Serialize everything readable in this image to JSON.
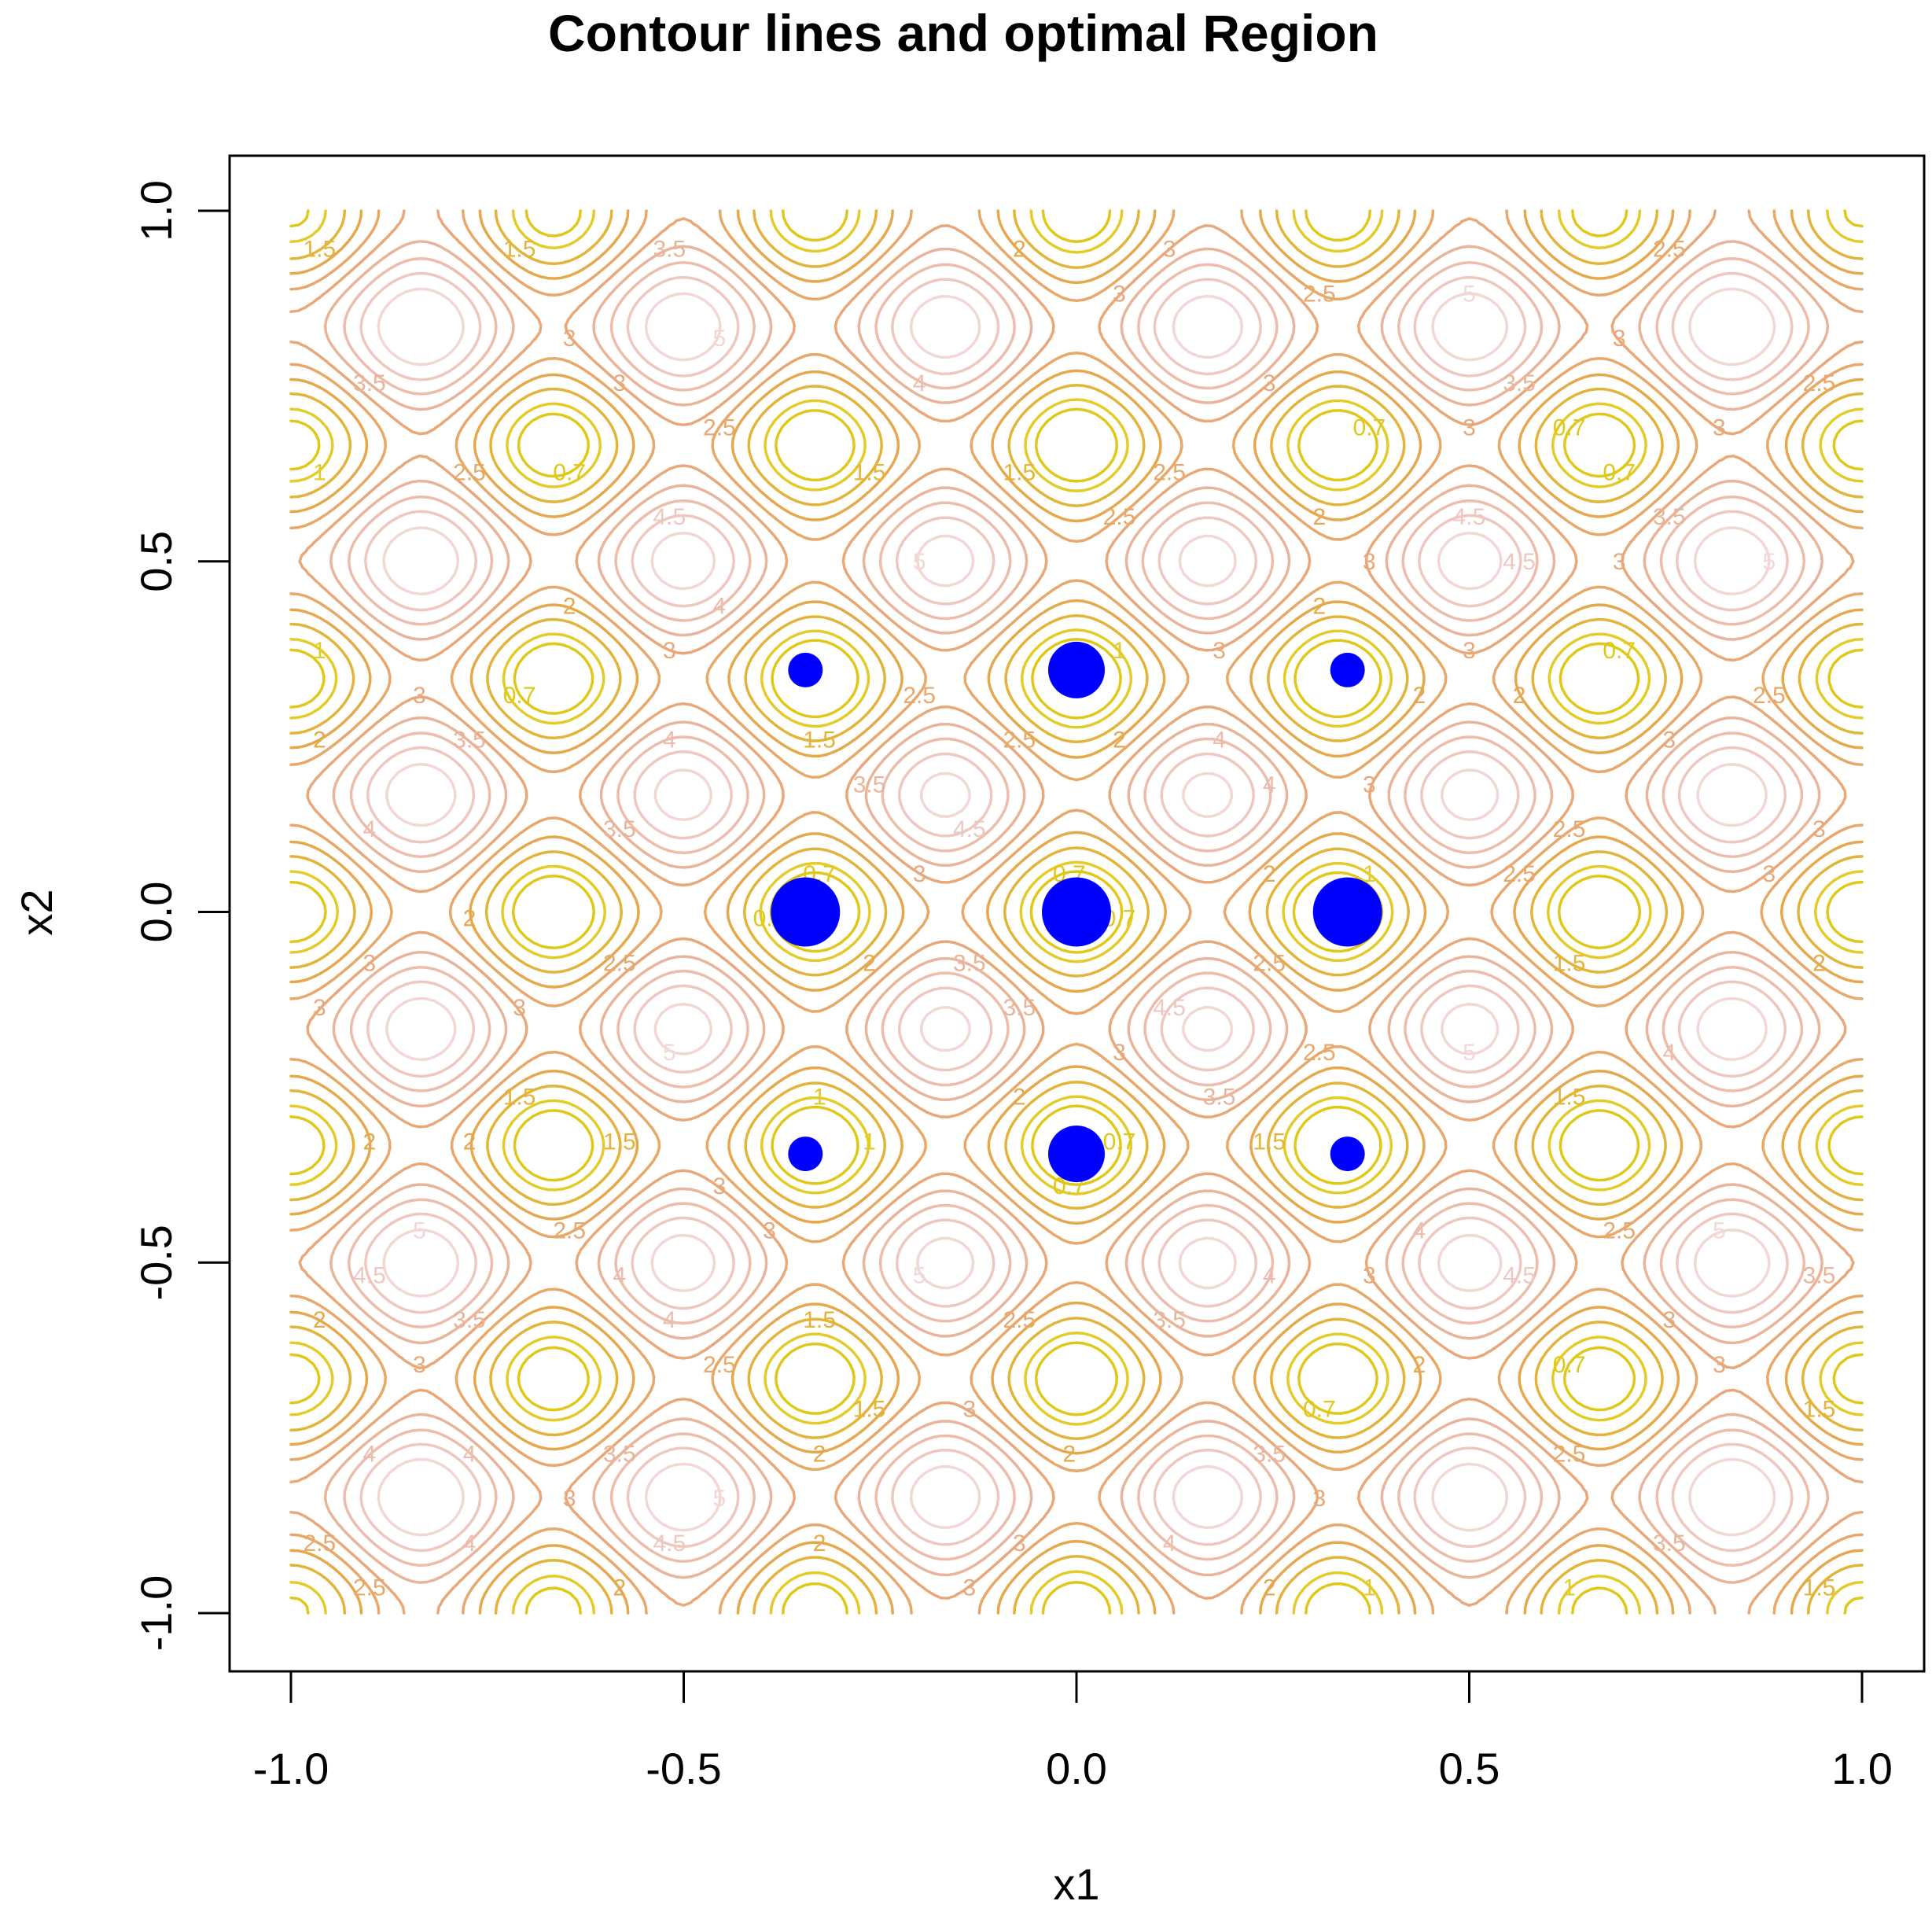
{
  "chart_data": {
    "type": "contour",
    "title": "Contour lines and optimal Region",
    "xlabel": "x1",
    "ylabel": "x2",
    "xlim": [
      -1.0,
      1.0
    ],
    "ylim": [
      -1.0,
      1.0
    ],
    "xticks": [
      "-1.0",
      "-0.5",
      "0.0",
      "0.5",
      "1.0"
    ],
    "yticks": [
      "-1.0",
      "-0.5",
      "0.0",
      "0.5",
      "1.0"
    ],
    "xtick_values": [
      -1.0,
      -0.5,
      0.0,
      0.5,
      1.0
    ],
    "ytick_values": [
      -1.0,
      -0.5,
      0.0,
      0.5,
      1.0
    ],
    "contour_levels": [
      0.7,
      1,
      1.5,
      2,
      2.5,
      3,
      3.5,
      4,
      4.5,
      5
    ],
    "contour_level_labels": [
      "0.7",
      "1",
      "1.5",
      "2",
      "2.5",
      "3",
      "3.5",
      "4",
      "4.5",
      "5"
    ],
    "contour_colors": {
      "0.7": "#e0c81a",
      "1": "#e3cb2a",
      "1.5": "#e3b43a",
      "2": "#e6a84c",
      "2.5": "#e8a86a",
      "3": "#e8a87a",
      "3.5": "#e8b49a",
      "4": "#ecbcac",
      "4.5": "#eec8c0",
      "5": "#f2d8d4"
    },
    "optimal_region_color": "#0000ff",
    "optimal_region_points": [
      {
        "x": 0.0,
        "y": 0.0,
        "size": "large"
      },
      {
        "x": -0.345,
        "y": 0.0,
        "size": "large"
      },
      {
        "x": 0.345,
        "y": 0.0,
        "size": "large"
      },
      {
        "x": 0.0,
        "y": 0.345,
        "size": "medium"
      },
      {
        "x": 0.0,
        "y": -0.345,
        "size": "medium"
      },
      {
        "x": -0.345,
        "y": 0.345,
        "size": "small"
      },
      {
        "x": 0.345,
        "y": 0.345,
        "size": "small"
      },
      {
        "x": -0.345,
        "y": -0.345,
        "size": "small"
      },
      {
        "x": 0.345,
        "y": -0.345,
        "size": "small"
      }
    ]
  }
}
